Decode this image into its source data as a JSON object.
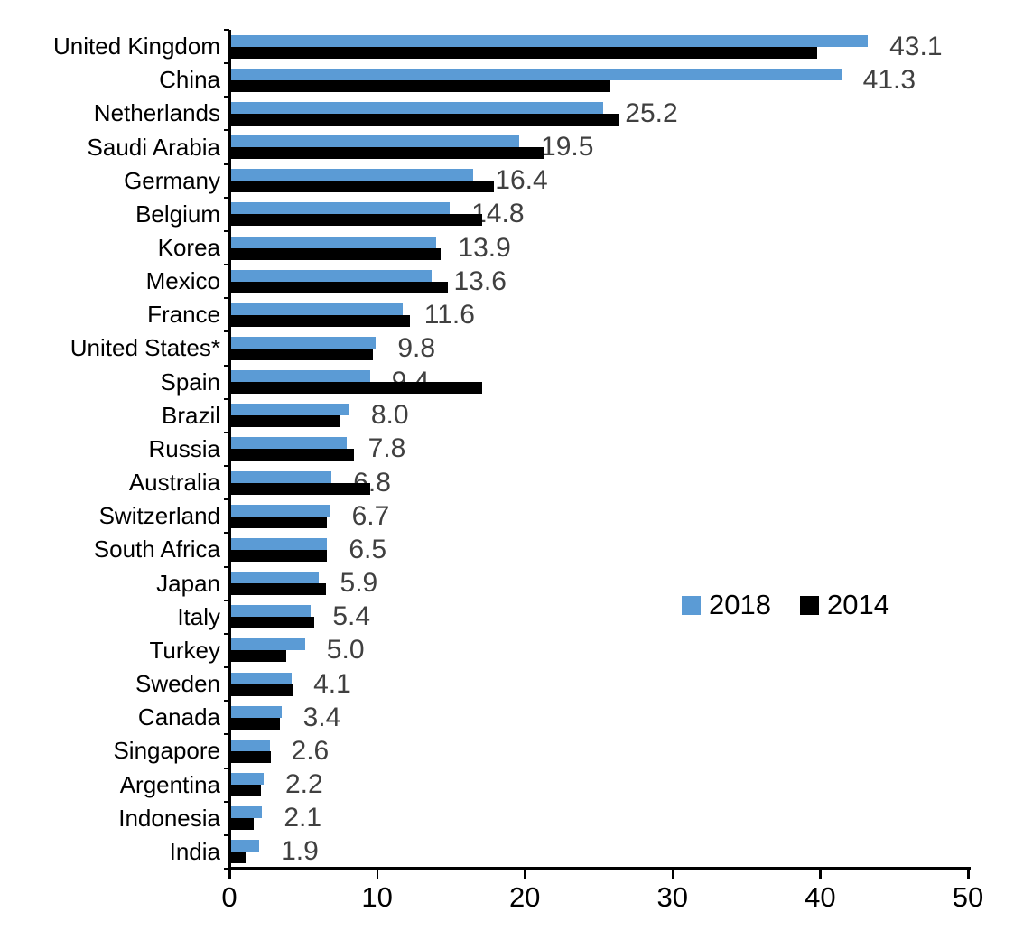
{
  "chart_data": {
    "type": "bar",
    "orientation": "horizontal",
    "title": "",
    "categories": [
      "United Kingdom",
      "China",
      "Netherlands",
      "Saudi Arabia",
      "Germany",
      "Belgium",
      "Korea",
      "Mexico",
      "France",
      "United States*",
      "Spain",
      "Brazil",
      "Russia",
      "Australia",
      "Switzerland",
      "South Africa",
      "Japan",
      "Italy",
      "Turkey",
      "Sweden",
      "Canada",
      "Singapore",
      "Argentina",
      "Indonesia",
      "India"
    ],
    "series": [
      {
        "name": "2018",
        "color": "#5B9BD5",
        "values": [
          43.1,
          41.3,
          25.2,
          19.5,
          16.4,
          14.8,
          13.9,
          13.6,
          11.6,
          9.8,
          9.4,
          8.0,
          7.8,
          6.8,
          6.7,
          6.5,
          5.9,
          5.4,
          5.0,
          4.1,
          3.4,
          2.6,
          2.2,
          2.1,
          1.9
        ],
        "data_labels": [
          "43.1",
          "41.3",
          "25.2",
          "19.5",
          "16.4",
          "14.8",
          "13.9",
          "13.6",
          "11.6",
          "9.8",
          "9.4",
          "8.0",
          "7.8",
          "6.8",
          "6.7",
          "6.5",
          "5.9",
          "5.4",
          "5.0",
          "4.1",
          "3.4",
          "2.6",
          "2.2",
          "2.1",
          "1.9"
        ]
      },
      {
        "name": "2014",
        "color": "#000000",
        "values": [
          39.7,
          25.7,
          26.3,
          21.2,
          17.8,
          17.0,
          14.2,
          14.7,
          12.1,
          9.6,
          17.0,
          7.4,
          8.3,
          9.4,
          6.5,
          6.5,
          6.4,
          5.6,
          3.7,
          4.2,
          3.3,
          2.7,
          2.0,
          1.5,
          1.0
        ]
      }
    ],
    "xlim": [
      0,
      50
    ],
    "x_ticks": [
      "0",
      "10",
      "20",
      "30",
      "40",
      "50"
    ],
    "grid": "off",
    "legend_position": "center-right",
    "value_label_color": "#404040",
    "axis_color": "#000000"
  }
}
